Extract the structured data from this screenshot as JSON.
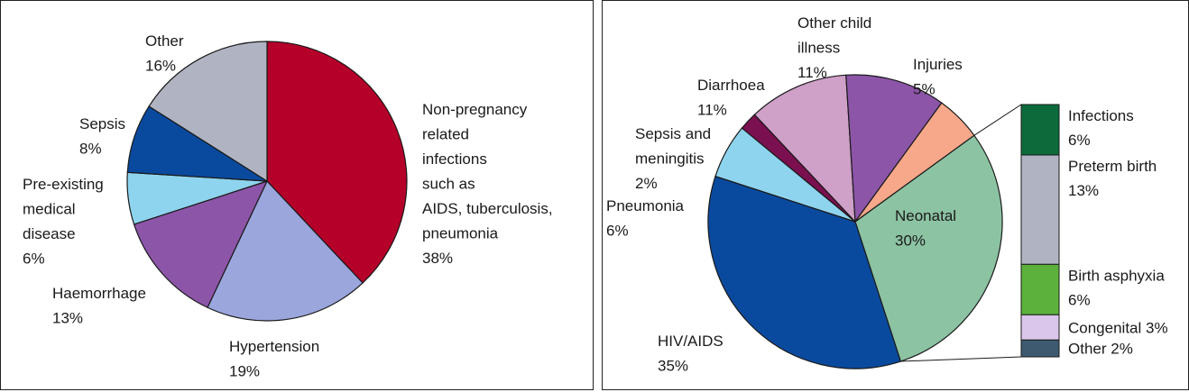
{
  "chart_data": [
    {
      "type": "pie",
      "title": "",
      "slices": [
        {
          "label": [
            "Non-pregnancy",
            "related",
            "infections",
            "such as",
            "AIDS, tuberculosis,",
            "pneumonia"
          ],
          "value": 38,
          "value_label": "38%",
          "color": "#b5002a"
        },
        {
          "label": [
            "Hypertension"
          ],
          "value": 19,
          "value_label": "19%",
          "color": "#9aa6dc"
        },
        {
          "label": [
            "Haemorrhage"
          ],
          "value": 13,
          "value_label": "13%",
          "color": "#8c55a8"
        },
        {
          "label": [
            "Pre-existing",
            "medical",
            "disease"
          ],
          "value": 6,
          "value_label": "6%",
          "color": "#8fd4ee"
        },
        {
          "label": [
            "Sepsis"
          ],
          "value": 8,
          "value_label": "8%",
          "color": "#0a4a9e"
        },
        {
          "label": [
            "Other"
          ],
          "value": 16,
          "value_label": "16%",
          "color": "#b0b4c2"
        }
      ]
    },
    {
      "type": "pie",
      "title": "",
      "slices": [
        {
          "label": [
            "Neonatal"
          ],
          "value": 30,
          "value_label": "30%",
          "color": "#8cc3a3"
        },
        {
          "label": [
            "HIV/AIDS"
          ],
          "value": 35,
          "value_label": "35%",
          "color": "#0a4a9e"
        },
        {
          "label": [
            "Pneumonia"
          ],
          "value": 6,
          "value_label": "6%",
          "color": "#8fd4ee"
        },
        {
          "label": [
            "Sepsis and",
            "meningitis"
          ],
          "value": 2,
          "value_label": "2%",
          "color": "#7a1050"
        },
        {
          "label": [
            "Diarrhoea"
          ],
          "value": 11,
          "value_label": "11%",
          "color": "#cfa0c8"
        },
        {
          "label": [
            "Other child",
            "illness"
          ],
          "value": 11,
          "value_label": "11%",
          "color": "#8c55a8"
        },
        {
          "label": [
            "Injuries"
          ],
          "value": 5,
          "value_label": "5%",
          "color": "#f7a88a"
        }
      ],
      "neonatal_breakdown": {
        "type": "bar",
        "stacked": true,
        "segments": [
          {
            "label": [
              "Infections",
              "6%"
            ],
            "value": 6,
            "color": "#0d6a3a"
          },
          {
            "label": [
              "Preterm birth",
              "13%"
            ],
            "value": 13,
            "color": "#b0b4c2"
          },
          {
            "label": [
              "Birth asphyxia",
              "6%"
            ],
            "value": 6,
            "color": "#5cb03c"
          },
          {
            "label": [
              "Congenital 3%"
            ],
            "value": 3,
            "color": "#d9c6ea"
          },
          {
            "label": [
              "Other 2%"
            ],
            "value": 2,
            "color": "#3d5a70"
          }
        ]
      }
    }
  ]
}
